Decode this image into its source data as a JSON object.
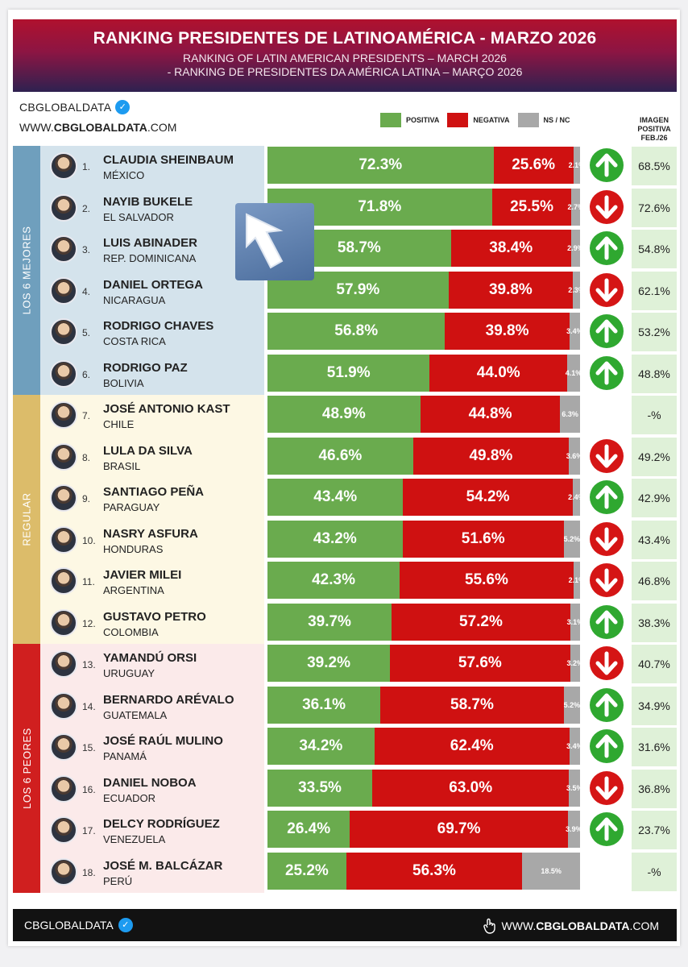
{
  "header": {
    "title": "RANKING PRESIDENTES DE LATINOAMÉRICA - MARZO 2026",
    "subtitle_en": "RANKING OF LATIN AMERICAN PRESIDENTS – MARCH 2026",
    "subtitle_pt": "- RANKING DE PRESIDENTES DA AMÉRICA LATINA – MARÇO 2026"
  },
  "brand": {
    "name": "CBGLOBALDATA",
    "url_prefix": "WWW.",
    "url_bold": "CBGLOBALDATA",
    "url_suffix": ".COM"
  },
  "legend": {
    "positive": "POSITIVA",
    "negative": "NEGATIVA",
    "nsnc": "NS / NC"
  },
  "image_column_header": [
    "IMAGEN",
    "POSITIVA",
    "FEB./26"
  ],
  "groups": [
    {
      "label": "LOS 6 MEJORES",
      "color": "#6f9fbd",
      "bg": "#d4e3ec"
    },
    {
      "label": "REGULAR",
      "color": "#dcbc6a",
      "bg": "#fdf8e4"
    },
    {
      "label": "LOS 6 PEORES",
      "color": "#d01f1f",
      "bg": "#fbeaea"
    }
  ],
  "colors": {
    "positive": "#6aab4e",
    "negative": "#cf1111",
    "nsnc": "#a8a8a8",
    "arrow_up": "#2fa830",
    "arrow_down": "#d51515",
    "image_cell": "#dff1d8"
  },
  "chart_data": {
    "type": "bar",
    "stacked": true,
    "orientation": "horizontal",
    "title": "RANKING PRESIDENTES DE LATINOAMÉRICA - MARZO 2026",
    "xlim": [
      0,
      100
    ],
    "series_labels": [
      "POSITIVA",
      "NEGATIVA",
      "NS / NC"
    ],
    "rows": [
      {
        "rank": "1.",
        "name": "CLAUDIA SHEINBAUM",
        "country": "MÉXICO",
        "pos": 72.3,
        "neg": 25.6,
        "ns": 2.1,
        "pos_label": "72.3%",
        "neg_label": "25.6%",
        "ns_label": "2.1%",
        "trend": "up",
        "feb": "68.5%",
        "group": 0
      },
      {
        "rank": "2.",
        "name": "NAYIB BUKELE",
        "country": "EL SALVADOR",
        "pos": 71.8,
        "neg": 25.5,
        "ns": 2.7,
        "pos_label": "71.8%",
        "neg_label": "25.5%",
        "ns_label": "2.7%",
        "trend": "down",
        "feb": "72.6%",
        "group": 0
      },
      {
        "rank": "3.",
        "name": "LUIS ABINADER",
        "country": "REP. DOMINICANA",
        "pos": 58.7,
        "neg": 38.4,
        "ns": 2.9,
        "pos_label": "58.7%",
        "neg_label": "38.4%",
        "ns_label": "2.9%",
        "trend": "up",
        "feb": "54.8%",
        "group": 0
      },
      {
        "rank": "4.",
        "name": "DANIEL ORTEGA",
        "country": "NICARAGUA",
        "pos": 57.9,
        "neg": 39.8,
        "ns": 2.3,
        "pos_label": "57.9%",
        "neg_label": "39.8%",
        "ns_label": "2.3%",
        "trend": "down",
        "feb": "62.1%",
        "group": 0
      },
      {
        "rank": "5.",
        "name": "RODRIGO CHAVES",
        "country": "COSTA RICA",
        "pos": 56.8,
        "neg": 39.8,
        "ns": 3.4,
        "pos_label": "56.8%",
        "neg_label": "39.8%",
        "ns_label": "3.4%",
        "trend": "up",
        "feb": "53.2%",
        "group": 0
      },
      {
        "rank": "6.",
        "name": "RODRIGO PAZ",
        "country": "BOLIVIA",
        "pos": 51.9,
        "neg": 44.0,
        "ns": 4.1,
        "pos_label": "51.9%",
        "neg_label": "44.0%",
        "ns_label": "4.1%",
        "trend": "up",
        "feb": "48.8%",
        "group": 0
      },
      {
        "rank": "7.",
        "name": "JOSÉ ANTONIO KAST",
        "country": "CHILE",
        "pos": 48.9,
        "neg": 44.8,
        "ns": 6.3,
        "pos_label": "48.9%",
        "neg_label": "44.8%",
        "ns_label": "6.3%",
        "trend": "none",
        "feb": "-%",
        "group": 1
      },
      {
        "rank": "8.",
        "name": "LULA DA SILVA",
        "country": "BRASIL",
        "pos": 46.6,
        "neg": 49.8,
        "ns": 3.6,
        "pos_label": "46.6%",
        "neg_label": "49.8%",
        "ns_label": "3.6%",
        "trend": "down",
        "feb": "49.2%",
        "group": 1
      },
      {
        "rank": "9.",
        "name": "SANTIAGO PEÑA",
        "country": "PARAGUAY",
        "pos": 43.4,
        "neg": 54.2,
        "ns": 2.4,
        "pos_label": "43.4%",
        "neg_label": "54.2%",
        "ns_label": "2.4%",
        "trend": "up",
        "feb": "42.9%",
        "group": 1
      },
      {
        "rank": "10.",
        "name": "NASRY ASFURA",
        "country": "HONDURAS",
        "pos": 43.2,
        "neg": 51.6,
        "ns": 5.2,
        "pos_label": "43.2%",
        "neg_label": "51.6%",
        "ns_label": "5.2%",
        "trend": "down",
        "feb": "43.4%",
        "group": 1
      },
      {
        "rank": "11.",
        "name": "JAVIER MILEI",
        "country": "ARGENTINA",
        "pos": 42.3,
        "neg": 55.6,
        "ns": 2.1,
        "pos_label": "42.3%",
        "neg_label": "55.6%",
        "ns_label": "2.1%",
        "trend": "down",
        "feb": "46.8%",
        "group": 1
      },
      {
        "rank": "12.",
        "name": "GUSTAVO PETRO",
        "country": "COLOMBIA",
        "pos": 39.7,
        "neg": 57.2,
        "ns": 3.1,
        "pos_label": "39.7%",
        "neg_label": "57.2%",
        "ns_label": "3.1%",
        "trend": "up",
        "feb": "38.3%",
        "group": 1
      },
      {
        "rank": "13.",
        "name": "YAMANDÚ ORSI",
        "country": "URUGUAY",
        "pos": 39.2,
        "neg": 57.6,
        "ns": 3.2,
        "pos_label": "39.2%",
        "neg_label": "57.6%",
        "ns_label": "3.2%",
        "trend": "down",
        "feb": "40.7%",
        "group": 2
      },
      {
        "rank": "14.",
        "name": "BERNARDO ARÉVALO",
        "country": "GUATEMALA",
        "pos": 36.1,
        "neg": 58.7,
        "ns": 5.2,
        "pos_label": "36.1%",
        "neg_label": "58.7%",
        "ns_label": "5.2%",
        "trend": "up",
        "feb": "34.9%",
        "group": 2
      },
      {
        "rank": "15.",
        "name": "JOSÉ RAÚL MULINO",
        "country": "PANAMÁ",
        "pos": 34.2,
        "neg": 62.4,
        "ns": 3.4,
        "pos_label": "34.2%",
        "neg_label": "62.4%",
        "ns_label": "3.4%",
        "trend": "up",
        "feb": "31.6%",
        "group": 2
      },
      {
        "rank": "16.",
        "name": "DANIEL NOBOA",
        "country": "ECUADOR",
        "pos": 33.5,
        "neg": 63.0,
        "ns": 3.5,
        "pos_label": "33.5%",
        "neg_label": "63.0%",
        "ns_label": "3.5%",
        "trend": "down",
        "feb": "36.8%",
        "group": 2
      },
      {
        "rank": "17.",
        "name": "DELCY RODRÍGUEZ",
        "country": "VENEZUELA",
        "pos": 26.4,
        "neg": 69.7,
        "ns": 3.9,
        "pos_label": "26.4%",
        "neg_label": "69.7%",
        "ns_label": "3.9%",
        "trend": "up",
        "feb": "23.7%",
        "group": 2
      },
      {
        "rank": "18.",
        "name": "JOSÉ M. BALCÁZAR",
        "country": "PERÚ",
        "pos": 25.2,
        "neg": 56.3,
        "ns": 18.5,
        "pos_label": "25.2%",
        "neg_label": "56.3%",
        "ns_label": "18.5%",
        "trend": "none",
        "feb": "-%",
        "group": 2
      }
    ]
  }
}
